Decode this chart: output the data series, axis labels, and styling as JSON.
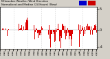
{
  "title": "Milwaukee Weather Wind Direction Normalized and Median (24 Hours) (New)",
  "background_color": "#d4d0c8",
  "plot_bg_color": "#ffffff",
  "bar_color": "#dd0000",
  "legend_color1": "#0000cc",
  "legend_color2": "#cc0000",
  "ylim": [
    -4.5,
    5.5
  ],
  "ytick_labels": [
    "5",
    "0",
    "-4"
  ],
  "ytick_vals": [
    5,
    0,
    -4
  ],
  "grid_color": "#aaaaaa",
  "border_color": "#000000",
  "num_bars": 144,
  "seed": 7
}
